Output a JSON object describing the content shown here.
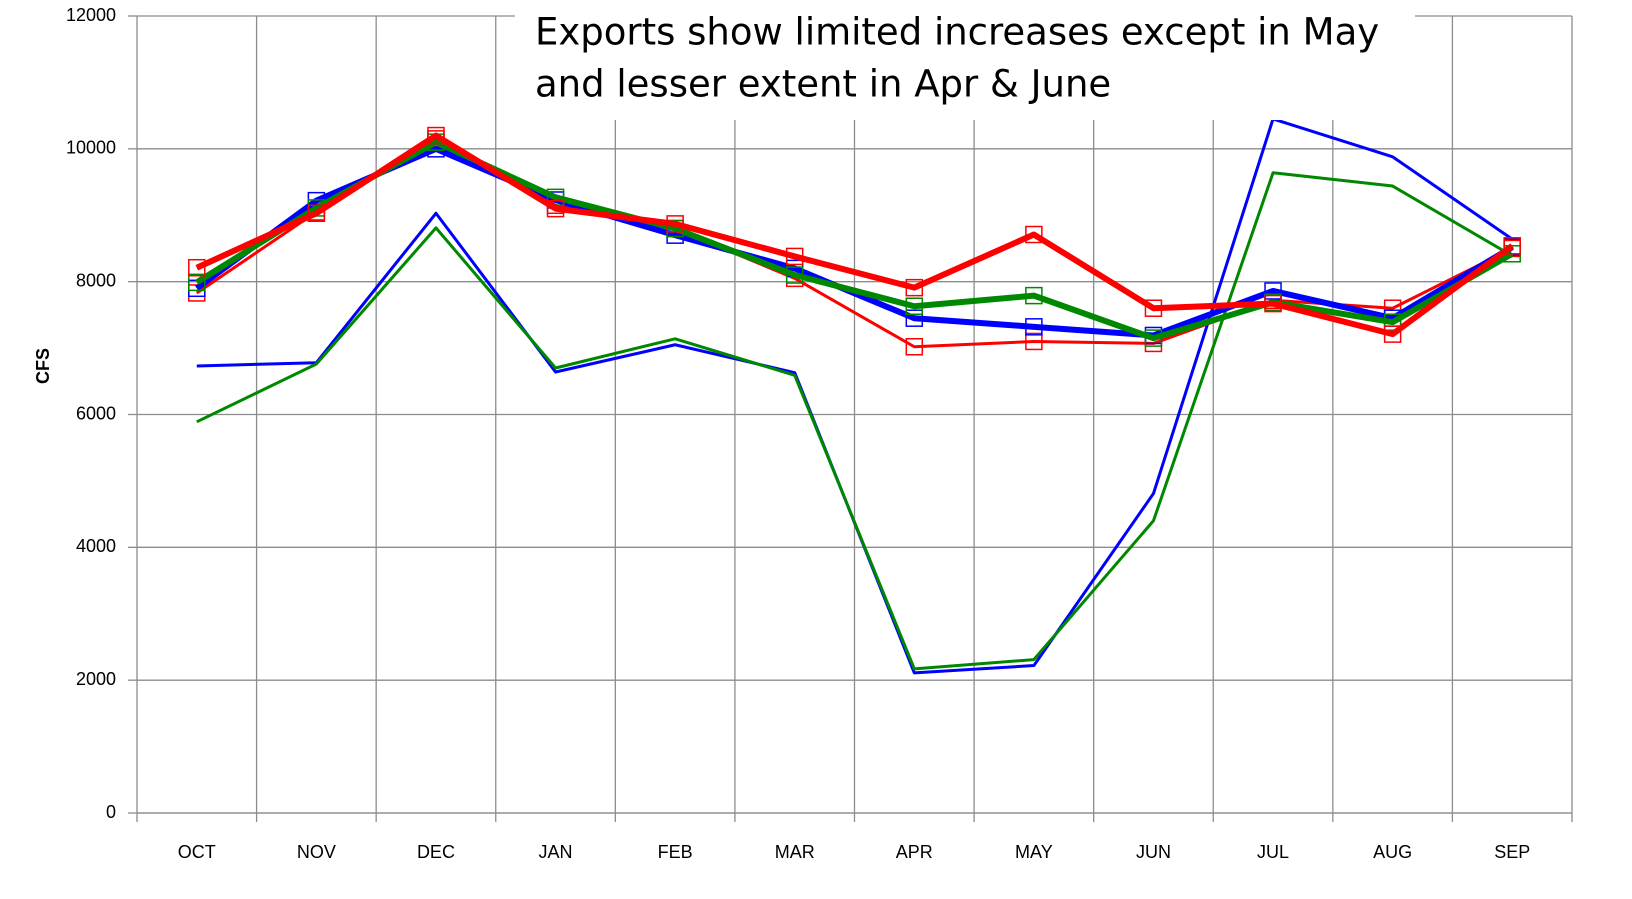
{
  "chart_data": {
    "type": "line",
    "title": [
      "Exports show limited increases except in May",
      "and lesser extent in Apr & June"
    ],
    "title_color": "#c00000",
    "y_label": "CFS",
    "categories": [
      "OCT",
      "NOV",
      "DEC",
      "JAN",
      "FEB",
      "MAR",
      "APR",
      "MAY",
      "JUN",
      "JUL",
      "AUG",
      "SEP"
    ],
    "ylim": [
      0,
      12000
    ],
    "yticks": [
      0,
      2000,
      4000,
      6000,
      8000,
      10000,
      12000
    ],
    "grid": true,
    "series": [
      {
        "color": "#0000ff",
        "width": 3,
        "markers": false,
        "values": [
          6730,
          6780,
          9030,
          6640,
          7050,
          6630,
          2110,
          2220,
          4810,
          10450,
          9880,
          8640
        ]
      },
      {
        "color": "#008800",
        "width": 3,
        "markers": false,
        "values": [
          5890,
          6760,
          8810,
          6700,
          7140,
          6590,
          2170,
          2310,
          4400,
          9640,
          9440,
          8390
        ]
      },
      {
        "color": "#ff0000",
        "width": 3,
        "markers": true,
        "values": [
          7830,
          9050,
          10150,
          9150,
          8800,
          8050,
          7020,
          7100,
          7070,
          7720,
          7600,
          8500
        ]
      },
      {
        "color": "#0000ff",
        "width": 6,
        "markers": true,
        "values": [
          7900,
          9220,
          10000,
          9230,
          8700,
          8200,
          7450,
          7320,
          7190,
          7860,
          7450,
          8520
        ]
      },
      {
        "color": "#008800",
        "width": 6,
        "markers": true,
        "values": [
          7990,
          9110,
          10100,
          9270,
          8800,
          8100,
          7630,
          7790,
          7150,
          7690,
          7390,
          8420
        ]
      },
      {
        "color": "#ff0000",
        "width": 6,
        "markers": true,
        "values": [
          8210,
          9030,
          10200,
          9100,
          8870,
          8380,
          7910,
          8710,
          7600,
          7670,
          7210,
          8540
        ]
      }
    ]
  }
}
